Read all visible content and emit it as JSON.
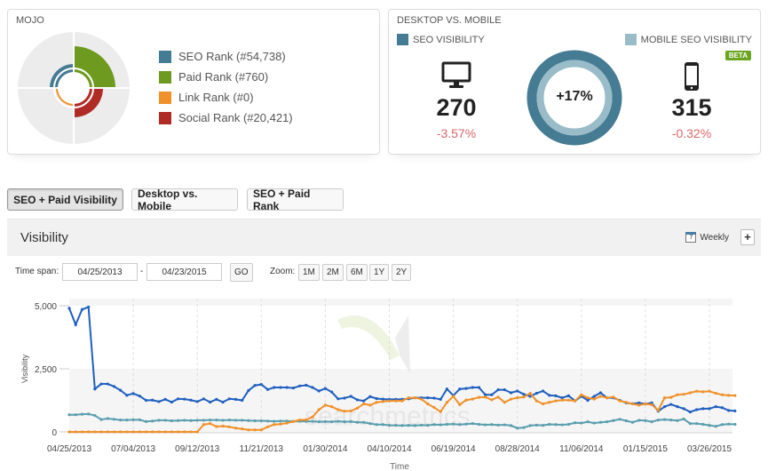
{
  "mojo": {
    "title": "MOJO",
    "legend": [
      {
        "label": "SEO Rank (#54,738)",
        "color": "#457b93"
      },
      {
        "label": "Paid Rank (#760)",
        "color": "#6e9a1f"
      },
      {
        "label": "Link Rank (#0)",
        "color": "#f0912a"
      },
      {
        "label": "Social Rank (#20,421)",
        "color": "#b02b25"
      }
    ]
  },
  "desktop_mobile": {
    "title": "DESKTOP VS. MOBILE",
    "seo_label": "SEO VISIBILITY",
    "mobile_label": "MOBILE SEO VISIBILITY",
    "beta": "BETA",
    "desktop_value": "270",
    "desktop_change": "-3.57%",
    "mobile_value": "315",
    "mobile_change": "-0.32%",
    "diff": "+17%",
    "desktop_icon": "monitor-icon",
    "mobile_icon": "smartphone-icon",
    "colors": {
      "seo": "#457b93",
      "mobile": "#99bcc8",
      "negative": "#d9676a",
      "beta": "#6aa520"
    }
  },
  "tabs": [
    {
      "label": "SEO + Paid Visibility",
      "active": true
    },
    {
      "label": "Desktop vs. Mobile"
    },
    {
      "label": "SEO + Paid Rank"
    }
  ],
  "section": {
    "title": "Visibility",
    "interval": "Weekly",
    "add": "+"
  },
  "timespan": {
    "label": "Time span:",
    "from": "04/25/2013",
    "sep": "-",
    "to": "04/23/2015",
    "go": "GO",
    "zoom_label": "Zoom:",
    "zoom": [
      "1M",
      "2M",
      "6M",
      "1Y",
      "2Y"
    ]
  },
  "watermark": "searchmetrics",
  "chart_data": {
    "type": "line",
    "xlabel": "Time",
    "ylabel": "Visibility",
    "ylim": [
      0,
      5000
    ],
    "grid": true,
    "yticks": [
      "0",
      "2,500",
      "5,000"
    ],
    "xticks": [
      "04/25/2013",
      "07/04/2013",
      "09/12/2013",
      "11/21/2013",
      "01/30/2014",
      "04/10/2014",
      "06/19/2014",
      "08/28/2014",
      "11/06/2014",
      "01/15/2015",
      "03/26/2015"
    ],
    "x_start": "04/25/2013",
    "x_interval": "weekly",
    "series": [
      {
        "color": "#1f5fbf",
        "values": [
          4900,
          4250,
          4850,
          4950,
          1700,
          1900,
          1900,
          1800,
          1650,
          1450,
          1520,
          1420,
          1250,
          1260,
          1200,
          1290,
          1180,
          1310,
          1300,
          1260,
          1200,
          1310,
          1180,
          1290,
          1180,
          1310,
          1290,
          1250,
          1640,
          1840,
          1880,
          1680,
          1760,
          1760,
          1760,
          1740,
          1820,
          1850,
          1760,
          1620,
          1720,
          1580,
          1310,
          1340,
          1410,
          1270,
          1230,
          1400,
          1320,
          1300,
          1290,
          1290,
          1290,
          1310,
          1350,
          1350,
          1350,
          1340,
          1290,
          1700,
          1440,
          1700,
          1720,
          1760,
          1760,
          1470,
          1470,
          1670,
          1670,
          1550,
          1620,
          1490,
          1410,
          1530,
          1620,
          1450,
          1430,
          1350,
          1430,
          1230,
          1410,
          1250,
          1410,
          1550,
          1350,
          1350,
          1250,
          1150,
          1120,
          1150,
          1110,
          1150,
          820,
          1000,
          1090,
          1000,
          920,
          790,
          880,
          920,
          920,
          1000,
          960,
          850,
          830
        ]
      },
      {
        "color": "#f0912a",
        "values": [
          0,
          0,
          0,
          0,
          0,
          0,
          0,
          0,
          0,
          0,
          0,
          0,
          0,
          0,
          0,
          0,
          0,
          0,
          0,
          0,
          0,
          290,
          330,
          210,
          230,
          200,
          150,
          120,
          80,
          80,
          80,
          200,
          290,
          310,
          350,
          410,
          470,
          480,
          590,
          880,
          1060,
          1000,
          880,
          820,
          830,
          940,
          1110,
          1060,
          1170,
          1200,
          1230,
          1230,
          1230,
          1350,
          1350,
          1300,
          1110,
          970,
          800,
          1170,
          1410,
          1080,
          1260,
          1300,
          1370,
          1380,
          1270,
          1380,
          1170,
          1300,
          1350,
          1380,
          1530,
          1230,
          1110,
          1170,
          1230,
          1260,
          1260,
          1230,
          1470,
          1350,
          1300,
          1410,
          1350,
          1380,
          1230,
          1170,
          1110,
          1060,
          1110,
          1080,
          850,
          1350,
          1370,
          1470,
          1490,
          1550,
          1610,
          1590,
          1610,
          1530,
          1470,
          1450,
          1440
        ]
      },
      {
        "color": "#5a9eae",
        "values": [
          680,
          680,
          700,
          710,
          650,
          490,
          530,
          500,
          470,
          470,
          480,
          480,
          410,
          430,
          460,
          460,
          440,
          450,
          460,
          450,
          460,
          460,
          470,
          470,
          460,
          470,
          460,
          460,
          450,
          440,
          440,
          430,
          420,
          430,
          430,
          420,
          420,
          420,
          420,
          400,
          410,
          400,
          420,
          400,
          410,
          380,
          380,
          330,
          290,
          290,
          260,
          260,
          250,
          260,
          250,
          270,
          260,
          290,
          280,
          300,
          310,
          290,
          310,
          330,
          300,
          280,
          290,
          270,
          280,
          250,
          150,
          170,
          250,
          270,
          260,
          300,
          290,
          280,
          300,
          360,
          350,
          400,
          350,
          380,
          400,
          450,
          500,
          440,
          380,
          460,
          450,
          400,
          470,
          490,
          470,
          450,
          510,
          330,
          330,
          300,
          260,
          220,
          290,
          310,
          300
        ]
      }
    ]
  }
}
